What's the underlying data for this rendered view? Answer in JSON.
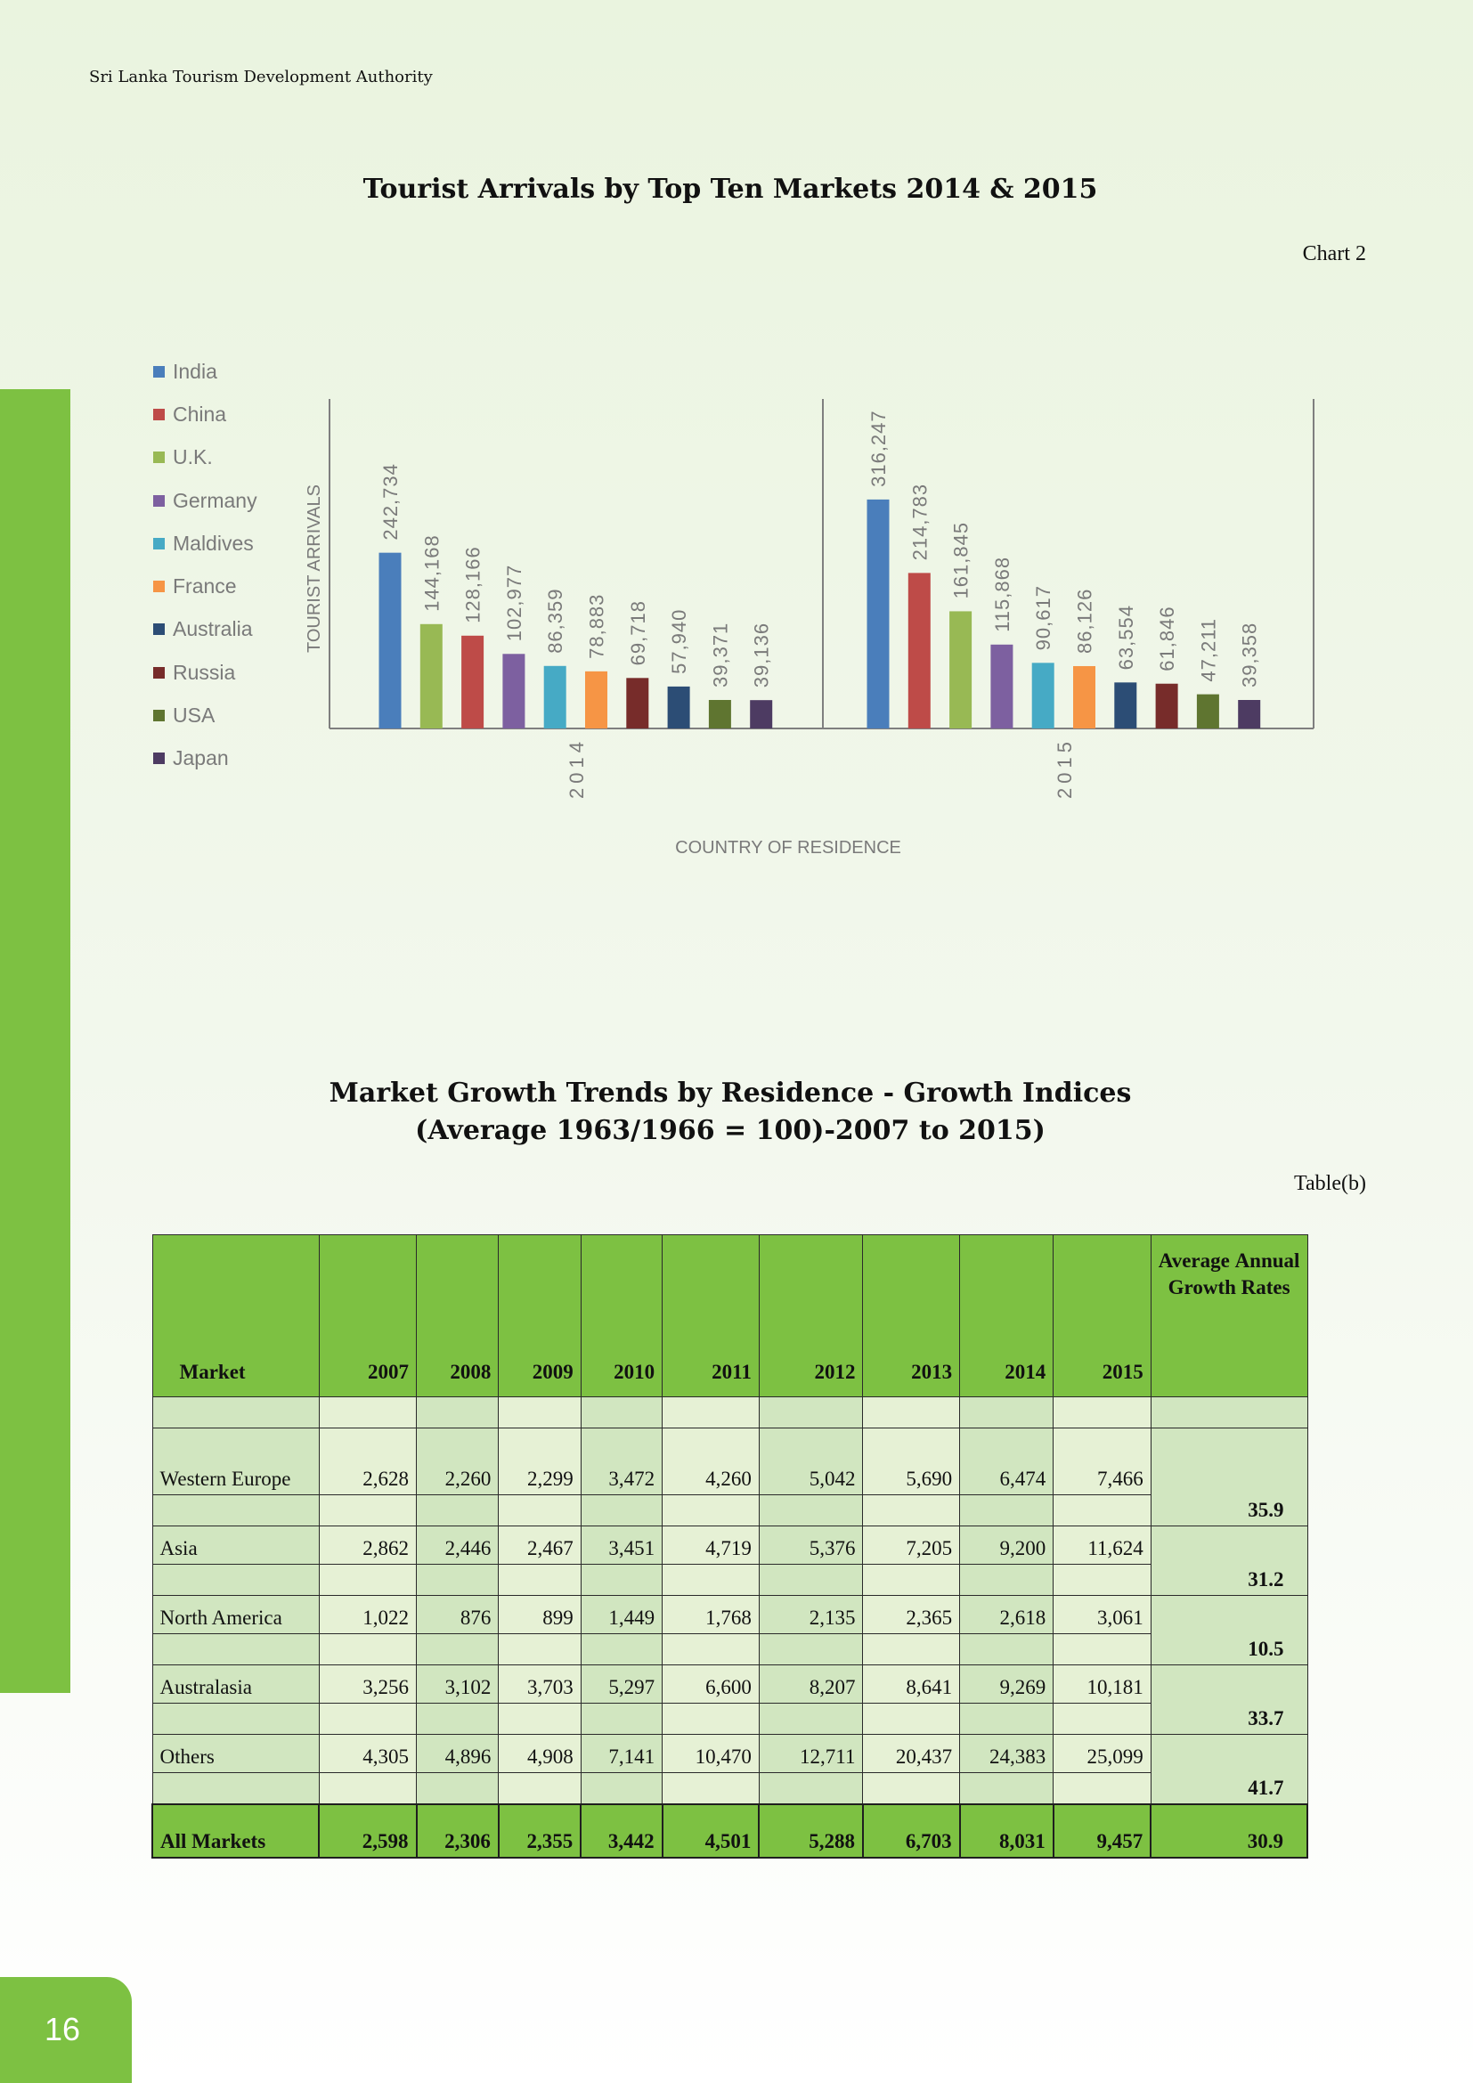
{
  "header": "Sri Lanka Tourism Development Authority",
  "page_number": "16",
  "chart": {
    "title": "Tourist Arrivals by Top Ten Markets 2014 & 2015",
    "ref": "Chart 2"
  },
  "chart_data": {
    "type": "bar",
    "title": "Tourist Arrivals by Top Ten Markets 2014 & 2015",
    "ylabel": "TOURIST ARRIVALS",
    "xlabel": "COUNTRY OF RESIDENCE",
    "legend_position": "left",
    "groups": [
      {
        "label": "2014",
        "bars": [
          {
            "market": "India",
            "value": 242734,
            "label": "242,734"
          },
          {
            "market": "U.K.",
            "value": 144168,
            "label": "144,168"
          },
          {
            "market": "China",
            "value": 128166,
            "label": "128,166"
          },
          {
            "market": "Germany",
            "value": 102977,
            "label": "102,977"
          },
          {
            "market": "Maldives",
            "value": 86359,
            "label": "86,359"
          },
          {
            "market": "France",
            "value": 78883,
            "label": "78,883"
          },
          {
            "market": "Russia",
            "value": 69718,
            "label": "69,718"
          },
          {
            "market": "Australia",
            "value": 57940,
            "label": "57,940"
          },
          {
            "market": "USA",
            "value": 39371,
            "label": "39,371"
          },
          {
            "market": "Japan",
            "value": 39136,
            "label": "39,136"
          }
        ]
      },
      {
        "label": "2015",
        "bars": [
          {
            "market": "India",
            "value": 316247,
            "label": "316,247"
          },
          {
            "market": "China",
            "value": 214783,
            "label": "214,783"
          },
          {
            "market": "U.K.",
            "value": 161845,
            "label": "161,845"
          },
          {
            "market": "Germany",
            "value": 115868,
            "label": "115,868"
          },
          {
            "market": "Maldives",
            "value": 90617,
            "label": "90,617"
          },
          {
            "market": "France",
            "value": 86126,
            "label": "86,126"
          },
          {
            "market": "Australia",
            "value": 63554,
            "label": "63,554"
          },
          {
            "market": "Russia",
            "value": 61846,
            "label": "61,846"
          },
          {
            "market": "USA",
            "value": 47211,
            "label": "47,211"
          },
          {
            "market": "Japan",
            "value": 39358,
            "label": "39,358"
          }
        ]
      }
    ],
    "legend": [
      {
        "name": "India",
        "color": "#4a7ebb"
      },
      {
        "name": "China",
        "color": "#be4b48"
      },
      {
        "name": "U.K.",
        "color": "#98b954"
      },
      {
        "name": "Germany",
        "color": "#7d60a0"
      },
      {
        "name": "Maldives",
        "color": "#46aac5"
      },
      {
        "name": "France",
        "color": "#f69545"
      },
      {
        "name": "Australia",
        "color": "#2c4d75"
      },
      {
        "name": "Russia",
        "color": "#772c2a"
      },
      {
        "name": "USA",
        "color": "#5f7530"
      },
      {
        "name": "Japan",
        "color": "#4d3b62"
      }
    ]
  },
  "table": {
    "title_line1": "Market Growth Trends by Residence - Growth Indices",
    "title_line2": "(Average 1963/1966 = 100)-2007 to 2015)",
    "ref": "Table(b)",
    "headers": {
      "market": "Market",
      "years": [
        "2007",
        "2008",
        "2009",
        "2010",
        "2011",
        "2012",
        "2013",
        "2014",
        "2015"
      ],
      "avg": "Average Annual Growth Rates"
    },
    "rows": [
      {
        "market": "Western Europe",
        "values": [
          "2,628",
          "2,260",
          "2,299",
          "3,472",
          "4,260",
          "5,042",
          "5,690",
          "6,474",
          "7,466"
        ],
        "rate": "35.9"
      },
      {
        "market": "Asia",
        "values": [
          "2,862",
          "2,446",
          "2,467",
          "3,451",
          "4,719",
          "5,376",
          "7,205",
          "9,200",
          "11,624"
        ],
        "rate": "31.2"
      },
      {
        "market": "North America",
        "values": [
          "1,022",
          "876",
          "899",
          "1,449",
          "1,768",
          "2,135",
          "2,365",
          "2,618",
          "3,061"
        ],
        "rate": "10.5"
      },
      {
        "market": "Australasia",
        "values": [
          "3,256",
          "3,102",
          "3,703",
          "5,297",
          "6,600",
          "8,207",
          "8,641",
          "9,269",
          "10,181"
        ],
        "rate": "33.7"
      },
      {
        "market": "Others",
        "values": [
          "4,305",
          "4,896",
          "4,908",
          "7,141",
          "10,470",
          "12,711",
          "20,437",
          "24,383",
          "25,099"
        ],
        "rate": "41.7"
      }
    ],
    "total": {
      "market": "All Markets",
      "values": [
        "2,598",
        "2,306",
        "2,355",
        "3,442",
        "4,501",
        "5,288",
        "6,703",
        "8,031",
        "9,457"
      ],
      "rate": "30.9"
    }
  }
}
